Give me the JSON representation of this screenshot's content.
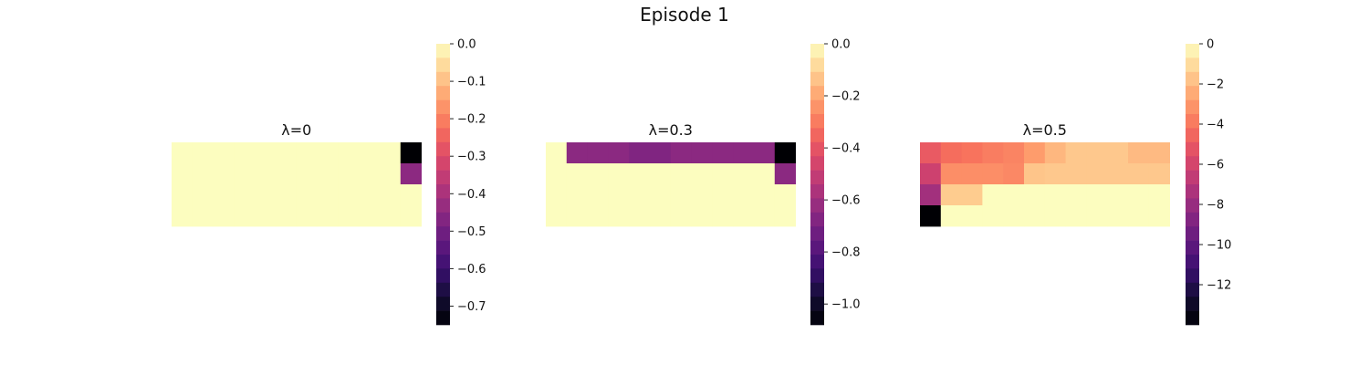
{
  "figure": {
    "title": "Episode 1"
  },
  "chart_data": [
    {
      "type": "heatmap",
      "title": "λ=0",
      "rows": 4,
      "cols": 12,
      "colormap": "magma",
      "vmin": -0.75,
      "vmax": 0.0,
      "colorbar_ticks": [
        0.0,
        -0.1,
        -0.2,
        -0.3,
        -0.4,
        -0.5,
        -0.6,
        -0.7
      ],
      "colorbar_tick_labels": [
        "0.0",
        "−0.1",
        "−0.2",
        "−0.3",
        "−0.4",
        "−0.5",
        "−0.6",
        "−0.7"
      ],
      "values": [
        [
          0,
          0,
          0,
          0,
          0,
          0,
          0,
          0,
          0,
          0,
          0,
          -0.75
        ],
        [
          0,
          0,
          0,
          0,
          0,
          0,
          0,
          0,
          0,
          0,
          0,
          -0.45
        ],
        [
          0,
          0,
          0,
          0,
          0,
          0,
          0,
          0,
          0,
          0,
          0,
          0
        ],
        [
          0,
          0,
          0,
          0,
          0,
          0,
          0,
          0,
          0,
          0,
          0,
          0
        ]
      ]
    },
    {
      "type": "heatmap",
      "title": "λ=0.3",
      "rows": 4,
      "cols": 12,
      "colormap": "magma",
      "vmin": -1.08,
      "vmax": 0.0,
      "colorbar_ticks": [
        0.0,
        -0.2,
        -0.4,
        -0.6,
        -0.8,
        -1.0
      ],
      "colorbar_tick_labels": [
        "0.0",
        "−0.2",
        "−0.4",
        "−0.6",
        "−0.8",
        "−1.0"
      ],
      "values": [
        [
          0,
          -0.65,
          -0.65,
          -0.65,
          -0.68,
          -0.68,
          -0.65,
          -0.65,
          -0.65,
          -0.65,
          -0.65,
          -1.08
        ],
        [
          0,
          0,
          0,
          0,
          0,
          0,
          0,
          0,
          0,
          0,
          0,
          -0.65
        ],
        [
          0,
          0,
          0,
          0,
          0,
          0,
          0,
          0,
          0,
          0,
          0,
          0
        ],
        [
          0,
          0,
          0,
          0,
          0,
          0,
          0,
          0,
          0,
          0,
          0,
          0
        ]
      ]
    },
    {
      "type": "heatmap",
      "title": "λ=0.5",
      "rows": 4,
      "cols": 12,
      "colormap": "magma",
      "vmin": -14,
      "vmax": 0,
      "colorbar_ticks": [
        0,
        -2,
        -4,
        -6,
        -8,
        -10,
        -12
      ],
      "colorbar_tick_labels": [
        "0",
        "−2",
        "−4",
        "−6",
        "−8",
        "−10",
        "−12"
      ],
      "values": [
        [
          -5.0,
          -4.3,
          -4.1,
          -3.8,
          -3.6,
          -2.9,
          -2.1,
          -1.6,
          -1.6,
          -1.6,
          -2.0,
          -2.0
        ],
        [
          -6.2,
          -3.3,
          -3.3,
          -3.3,
          -3.5,
          -1.7,
          -1.6,
          -1.6,
          -1.6,
          -1.6,
          -1.6,
          -1.6
        ],
        [
          -7.7,
          -1.5,
          -1.5,
          0,
          0,
          0,
          0,
          0,
          0,
          0,
          0,
          0
        ],
        [
          -14,
          0,
          0,
          0,
          0,
          0,
          0,
          0,
          0,
          0,
          0,
          0
        ]
      ]
    }
  ]
}
